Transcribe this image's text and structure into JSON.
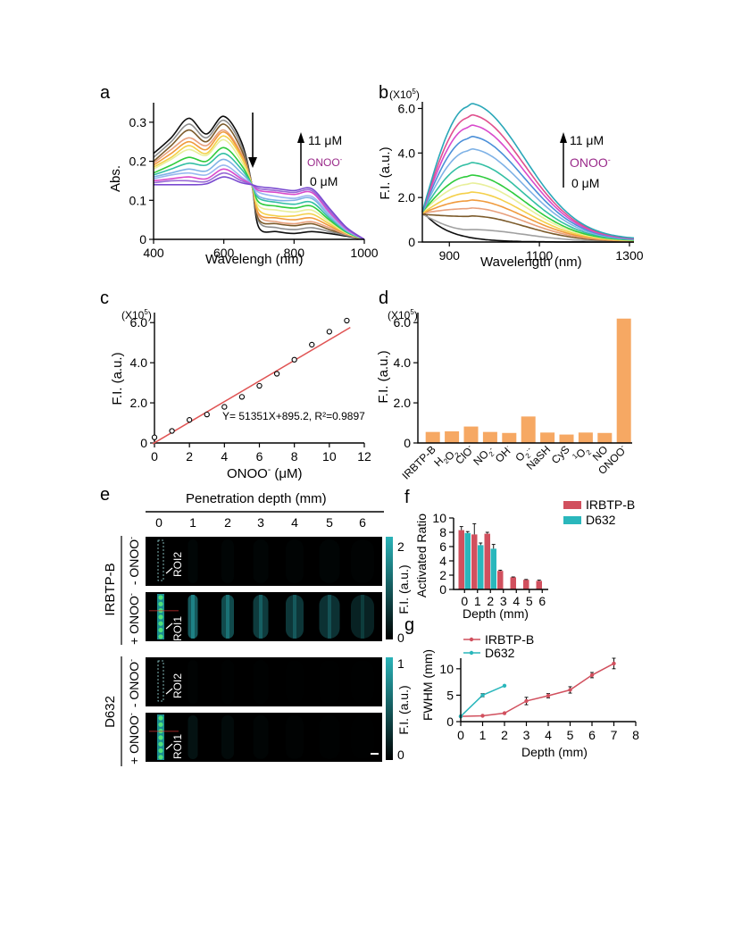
{
  "panels": {
    "a": "a",
    "b": "b",
    "c": "c",
    "d": "d",
    "e": "e",
    "f": "f",
    "g": "g"
  },
  "chart_data": [
    {
      "id": "a",
      "type": "line",
      "xlabel": "Wavelengh (nm)",
      "ylabel": "Abs.",
      "xlim": [
        400,
        1000
      ],
      "ylim": [
        0,
        0.35
      ],
      "xticks": [
        400,
        600,
        800,
        1000
      ],
      "yticks": [
        0,
        0.1,
        0.2,
        0.3
      ],
      "ytick_labels": [
        "0",
        "0.1",
        "0.2",
        "0.3"
      ],
      "annotation": {
        "top": "11 μM",
        "middle": "ONOO",
        "middle_sup": "-",
        "bottom": "0 μM"
      },
      "colors": [
        "#0e0e0e",
        "#8c8c8c",
        "#7b5a2a",
        "#e8a07c",
        "#f09a3c",
        "#f4d04a",
        "#e8ef9a",
        "#2ecb3c",
        "#33bfa4",
        "#7fb2e6",
        "#9ab8f0",
        "#d94acc",
        "#9a6ad6",
        "#7a4ad0"
      ],
      "x": [
        400,
        450,
        500,
        550,
        600,
        650,
        680,
        700,
        750,
        800,
        850,
        900,
        950,
        1000
      ],
      "series": [
        {
          "values": [
            0.22,
            0.26,
            0.31,
            0.27,
            0.315,
            0.25,
            0.14,
            0.03,
            0.02,
            0.015,
            0.02,
            0.015,
            0.008,
            0.0
          ]
        },
        {
          "values": [
            0.21,
            0.25,
            0.295,
            0.26,
            0.305,
            0.24,
            0.14,
            0.045,
            0.03,
            0.025,
            0.03,
            0.02,
            0.01,
            0.0
          ]
        },
        {
          "values": [
            0.2,
            0.24,
            0.28,
            0.25,
            0.295,
            0.23,
            0.14,
            0.05,
            0.04,
            0.035,
            0.04,
            0.025,
            0.012,
            0.0
          ]
        },
        {
          "values": [
            0.195,
            0.23,
            0.26,
            0.24,
            0.28,
            0.22,
            0.14,
            0.06,
            0.045,
            0.04,
            0.045,
            0.03,
            0.012,
            0.0
          ]
        },
        {
          "values": [
            0.19,
            0.22,
            0.25,
            0.23,
            0.275,
            0.215,
            0.14,
            0.065,
            0.055,
            0.05,
            0.055,
            0.035,
            0.014,
            0.0
          ]
        },
        {
          "values": [
            0.185,
            0.21,
            0.24,
            0.22,
            0.265,
            0.21,
            0.14,
            0.075,
            0.06,
            0.06,
            0.065,
            0.04,
            0.015,
            0.0
          ]
        },
        {
          "values": [
            0.18,
            0.205,
            0.23,
            0.215,
            0.255,
            0.2,
            0.14,
            0.085,
            0.075,
            0.07,
            0.075,
            0.045,
            0.016,
            0.0
          ]
        },
        {
          "values": [
            0.17,
            0.19,
            0.21,
            0.2,
            0.235,
            0.19,
            0.14,
            0.095,
            0.085,
            0.08,
            0.085,
            0.05,
            0.018,
            0.0
          ]
        },
        {
          "values": [
            0.165,
            0.18,
            0.195,
            0.19,
            0.22,
            0.18,
            0.14,
            0.105,
            0.095,
            0.09,
            0.095,
            0.055,
            0.02,
            0.0
          ]
        },
        {
          "values": [
            0.16,
            0.17,
            0.18,
            0.175,
            0.205,
            0.17,
            0.14,
            0.11,
            0.1,
            0.1,
            0.105,
            0.06,
            0.022,
            0.0
          ]
        },
        {
          "values": [
            0.155,
            0.165,
            0.17,
            0.165,
            0.19,
            0.16,
            0.14,
            0.12,
            0.11,
            0.105,
            0.11,
            0.065,
            0.024,
            0.0
          ]
        },
        {
          "values": [
            0.15,
            0.155,
            0.16,
            0.155,
            0.18,
            0.155,
            0.14,
            0.125,
            0.12,
            0.115,
            0.12,
            0.07,
            0.026,
            0.0
          ]
        },
        {
          "values": [
            0.145,
            0.15,
            0.15,
            0.148,
            0.17,
            0.15,
            0.14,
            0.13,
            0.125,
            0.12,
            0.125,
            0.075,
            0.028,
            0.0
          ]
        },
        {
          "values": [
            0.14,
            0.14,
            0.14,
            0.142,
            0.16,
            0.145,
            0.14,
            0.135,
            0.13,
            0.125,
            0.13,
            0.08,
            0.03,
            0.0
          ]
        }
      ]
    },
    {
      "id": "b",
      "type": "line",
      "xlabel": "Wavelength (nm)",
      "ylabel": "F.I. (a.u.)",
      "multiplier": "(X10",
      "multiplier_exp": "5",
      "multiplier_close": ")",
      "xlim": [
        840,
        1310
      ],
      "ylim": [
        0,
        6.3
      ],
      "xticks": [
        900,
        1100,
        1300
      ],
      "yticks": [
        0,
        2,
        4,
        6
      ],
      "ytick_labels": [
        "0",
        "2.0",
        "4.0",
        "6.0"
      ],
      "annotation": {
        "top": "11 μM",
        "middle": "ONOO",
        "middle_sup": "-",
        "bottom": "0 μM"
      },
      "colors": [
        "#0e0e0e",
        "#a0a0a0",
        "#7b5a2a",
        "#e8a07c",
        "#f09a3c",
        "#f4d04a",
        "#e8ef9a",
        "#2ecb3c",
        "#33bfa4",
        "#7fb2e6",
        "#4a8fd8",
        "#d94acc",
        "#e0508e",
        "#2aa7b8"
      ],
      "peaks": [
        0.05,
        0.55,
        1.15,
        1.5,
        1.85,
        2.2,
        2.6,
        2.95,
        3.5,
        4.1,
        4.65,
        5.15,
        5.6,
        6.1
      ],
      "start": [
        1.4,
        1.25,
        1.25,
        1.3,
        1.3,
        1.3,
        1.35,
        1.35,
        1.35,
        1.35,
        1.35,
        1.35,
        1.35,
        1.35
      ]
    },
    {
      "id": "c",
      "type": "scatter",
      "xlabel": "ONOO",
      "xlabel_sup": "-",
      "xlabel_unit": " (μM)",
      "ylabel": "F.I. (a.u.)",
      "multiplier": "(X10",
      "multiplier_exp": "5",
      "multiplier_close": ")",
      "xlim": [
        0,
        12
      ],
      "ylim": [
        0,
        6.5
      ],
      "xticks": [
        0,
        2,
        4,
        6,
        8,
        10,
        12
      ],
      "yticks": [
        0,
        2,
        4,
        6
      ],
      "ytick_labels": [
        "0",
        "2.0",
        "4.0",
        "6.0"
      ],
      "equation": "Y= 51351X+895.2, R²=0.9897",
      "fit": {
        "slope": 0.51351,
        "intercept": 0.008952,
        "color": "#e05454"
      },
      "points": [
        [
          0,
          0.28
        ],
        [
          1,
          0.6
        ],
        [
          2,
          1.15
        ],
        [
          3,
          1.42
        ],
        [
          4,
          1.8
        ],
        [
          5,
          2.3
        ],
        [
          6,
          2.85
        ],
        [
          7,
          3.45
        ],
        [
          8,
          4.15
        ],
        [
          9,
          4.9
        ],
        [
          10,
          5.55
        ],
        [
          11,
          6.1
        ]
      ]
    },
    {
      "id": "d",
      "type": "bar",
      "ylabel": "F.I. (a.u.)",
      "multiplier": "(X10",
      "multiplier_exp": "5",
      "multiplier_close": ")",
      "ylim": [
        0,
        6.5
      ],
      "yticks": [
        0,
        2,
        4,
        6
      ],
      "ytick_labels": [
        "0",
        "2.0",
        "4.0",
        "6.0"
      ],
      "color": "#f6a863",
      "categories": [
        {
          "base": "IRBTP-B",
          "sub": "",
          "sup": "",
          "tail": ""
        },
        {
          "base": "H",
          "sub": "2",
          "sup": "",
          "tail": "O",
          "sub2": "2"
        },
        {
          "base": "ClO",
          "sub": "",
          "sup": "-",
          "tail": ""
        },
        {
          "base": "NO",
          "sub": "2",
          "sup": "-",
          "tail": ""
        },
        {
          "base": "OH",
          "sub": "",
          "sup": "·",
          "tail": ""
        },
        {
          "base": "O",
          "sub": "2",
          "sup": "·-",
          "tail": ""
        },
        {
          "base": "NaSH",
          "sub": "",
          "sup": "",
          "tail": ""
        },
        {
          "base": "CyS",
          "sub": "",
          "sup": "",
          "tail": ""
        },
        {
          "base": "",
          "pre": "1",
          "base2": "O",
          "sub": "2",
          "sup": "",
          "tail": ""
        },
        {
          "base": "NO",
          "sub": "",
          "sup": "",
          "tail": ""
        },
        {
          "base": "ONOO",
          "sub": "",
          "sup": "-",
          "tail": ""
        }
      ],
      "values": [
        0.55,
        0.58,
        0.82,
        0.55,
        0.5,
        1.32,
        0.52,
        0.42,
        0.52,
        0.5,
        6.2
      ]
    },
    {
      "id": "e",
      "type": "heatmap",
      "title": "Penetration depth (mm)",
      "depth_labels": [
        "0",
        "1",
        "2",
        "3",
        "4",
        "5",
        "6"
      ],
      "group_labels": [
        "IRBTP-B",
        "D632"
      ],
      "row_labels_minus": "- ONOO",
      "row_labels_plus": "+ ONOO",
      "row_sup": "-",
      "roi_labels": [
        "ROI2",
        "ROI1",
        "ROI2",
        "ROI1"
      ],
      "colorbar_label": "F.I. (a.u.)",
      "colorbar_ticks": [
        [
          "2",
          "0"
        ],
        [
          "1",
          "0"
        ]
      ],
      "colormap": [
        "#000000",
        "#2ab3b8"
      ],
      "band_intensity": {
        "irbtp_plus": [
          1.0,
          0.9,
          0.75,
          0.6,
          0.55,
          0.5,
          0.35
        ],
        "irbtp_minus": [
          0.05,
          0.06,
          0.05,
          0.05,
          0.04,
          0.05,
          0.03
        ],
        "d632_plus": [
          1.0,
          0.18,
          0.1,
          0.05,
          0.03,
          0.02,
          0.01
        ],
        "d632_minus": [
          0.04,
          0.03,
          0.02,
          0.02,
          0.01,
          0.01,
          0.01
        ]
      }
    },
    {
      "id": "f",
      "type": "bar",
      "xlabel": "Depth (mm)",
      "ylabel": "Activated Ratio",
      "ylim": [
        0,
        10
      ],
      "yticks": [
        0,
        2,
        4,
        6,
        8,
        10
      ],
      "categories": [
        "0",
        "1",
        "2",
        "3",
        "4",
        "5",
        "6"
      ],
      "series": [
        {
          "name": "IRBTP-B",
          "color": "#d1505e",
          "values": [
            8.3,
            7.7,
            7.8,
            2.6,
            1.7,
            1.35,
            1.2
          ],
          "errors": [
            0.5,
            1.5,
            0.2,
            0.1,
            0.05,
            0.05,
            0.1
          ]
        },
        {
          "name": "D632",
          "color": "#2ab7bc",
          "values": [
            7.9,
            6.2,
            5.7,
            null,
            null,
            null,
            null
          ],
          "errors": [
            0.2,
            0.3,
            0.6,
            null,
            null,
            null,
            null
          ]
        }
      ]
    },
    {
      "id": "g",
      "type": "line",
      "xlabel": "Depth (mm)",
      "ylabel": "FWHM (mm)",
      "xlim": [
        0,
        8
      ],
      "ylim": [
        0,
        12
      ],
      "xticks": [
        0,
        1,
        2,
        3,
        4,
        5,
        6,
        7,
        8
      ],
      "yticks": [
        0,
        5,
        10
      ],
      "series": [
        {
          "name": "IRBTP-B",
          "color": "#d1505e",
          "x": [
            0,
            1,
            2,
            3,
            4,
            5,
            6,
            7
          ],
          "values": [
            1.0,
            1.1,
            1.6,
            3.9,
            4.9,
            6.0,
            8.8,
            11.0
          ],
          "errors": [
            0,
            0,
            0,
            0.7,
            0.4,
            0.6,
            0.5,
            1.0
          ]
        },
        {
          "name": "D632",
          "color": "#2ab7bc",
          "x": [
            0,
            1,
            2
          ],
          "values": [
            1.0,
            5.0,
            6.8
          ],
          "errors": [
            0,
            0.3,
            0
          ]
        }
      ]
    }
  ]
}
